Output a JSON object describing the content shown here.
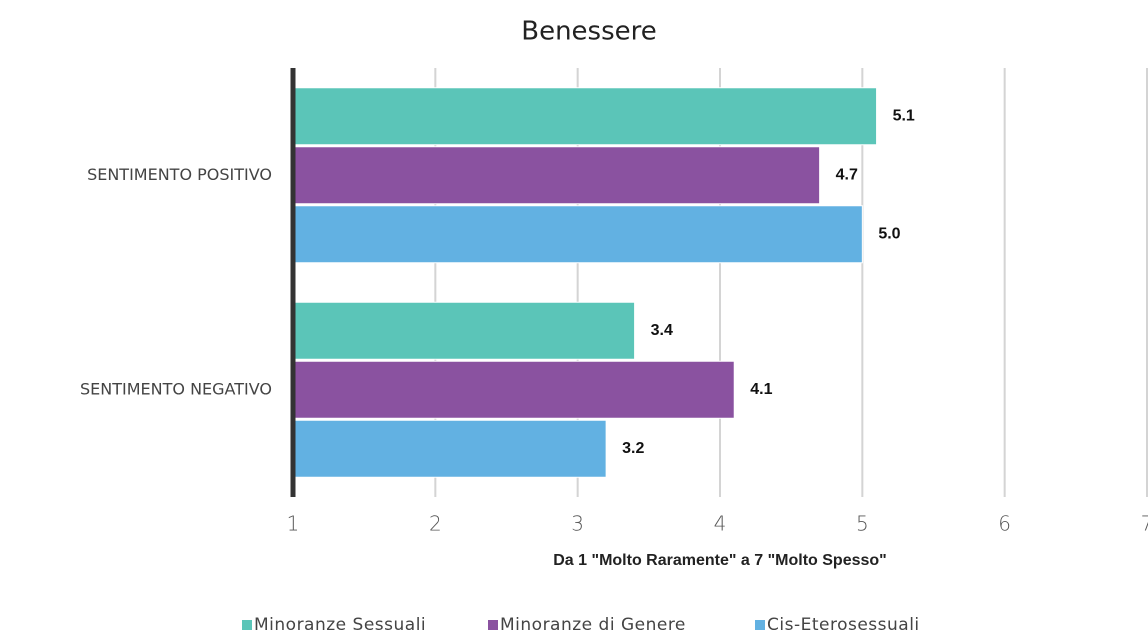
{
  "chart_data": {
    "type": "bar",
    "orientation": "horizontal",
    "title": "Benessere",
    "categories": [
      "SENTIMENTO  POSITIVO",
      "SENTIMENTO  NEGATIVO"
    ],
    "series": [
      {
        "name": "Minoranze Sessuali",
        "color": "#5bc5b8",
        "values": [
          5.1,
          3.4
        ],
        "value_labels": [
          "5.1",
          "3.4"
        ]
      },
      {
        "name": "Minoranze di Genere",
        "color": "#8a52a0",
        "values": [
          4.7,
          4.1
        ],
        "value_labels": [
          "4.7",
          "4.1"
        ]
      },
      {
        "name": "Cis-Eterosessuali",
        "color": "#62b1e2",
        "values": [
          5,
          3.2
        ],
        "value_labels": [
          "5.0",
          "3.2"
        ]
      }
    ],
    "xlim": [
      1,
      7
    ],
    "xticks": [
      1,
      2,
      3,
      4,
      5,
      6,
      7
    ],
    "grid": true,
    "legend": "bottom",
    "xlabel": "Da 1 \"Molto Raramente\" a 7 \"Molto Spesso\""
  }
}
